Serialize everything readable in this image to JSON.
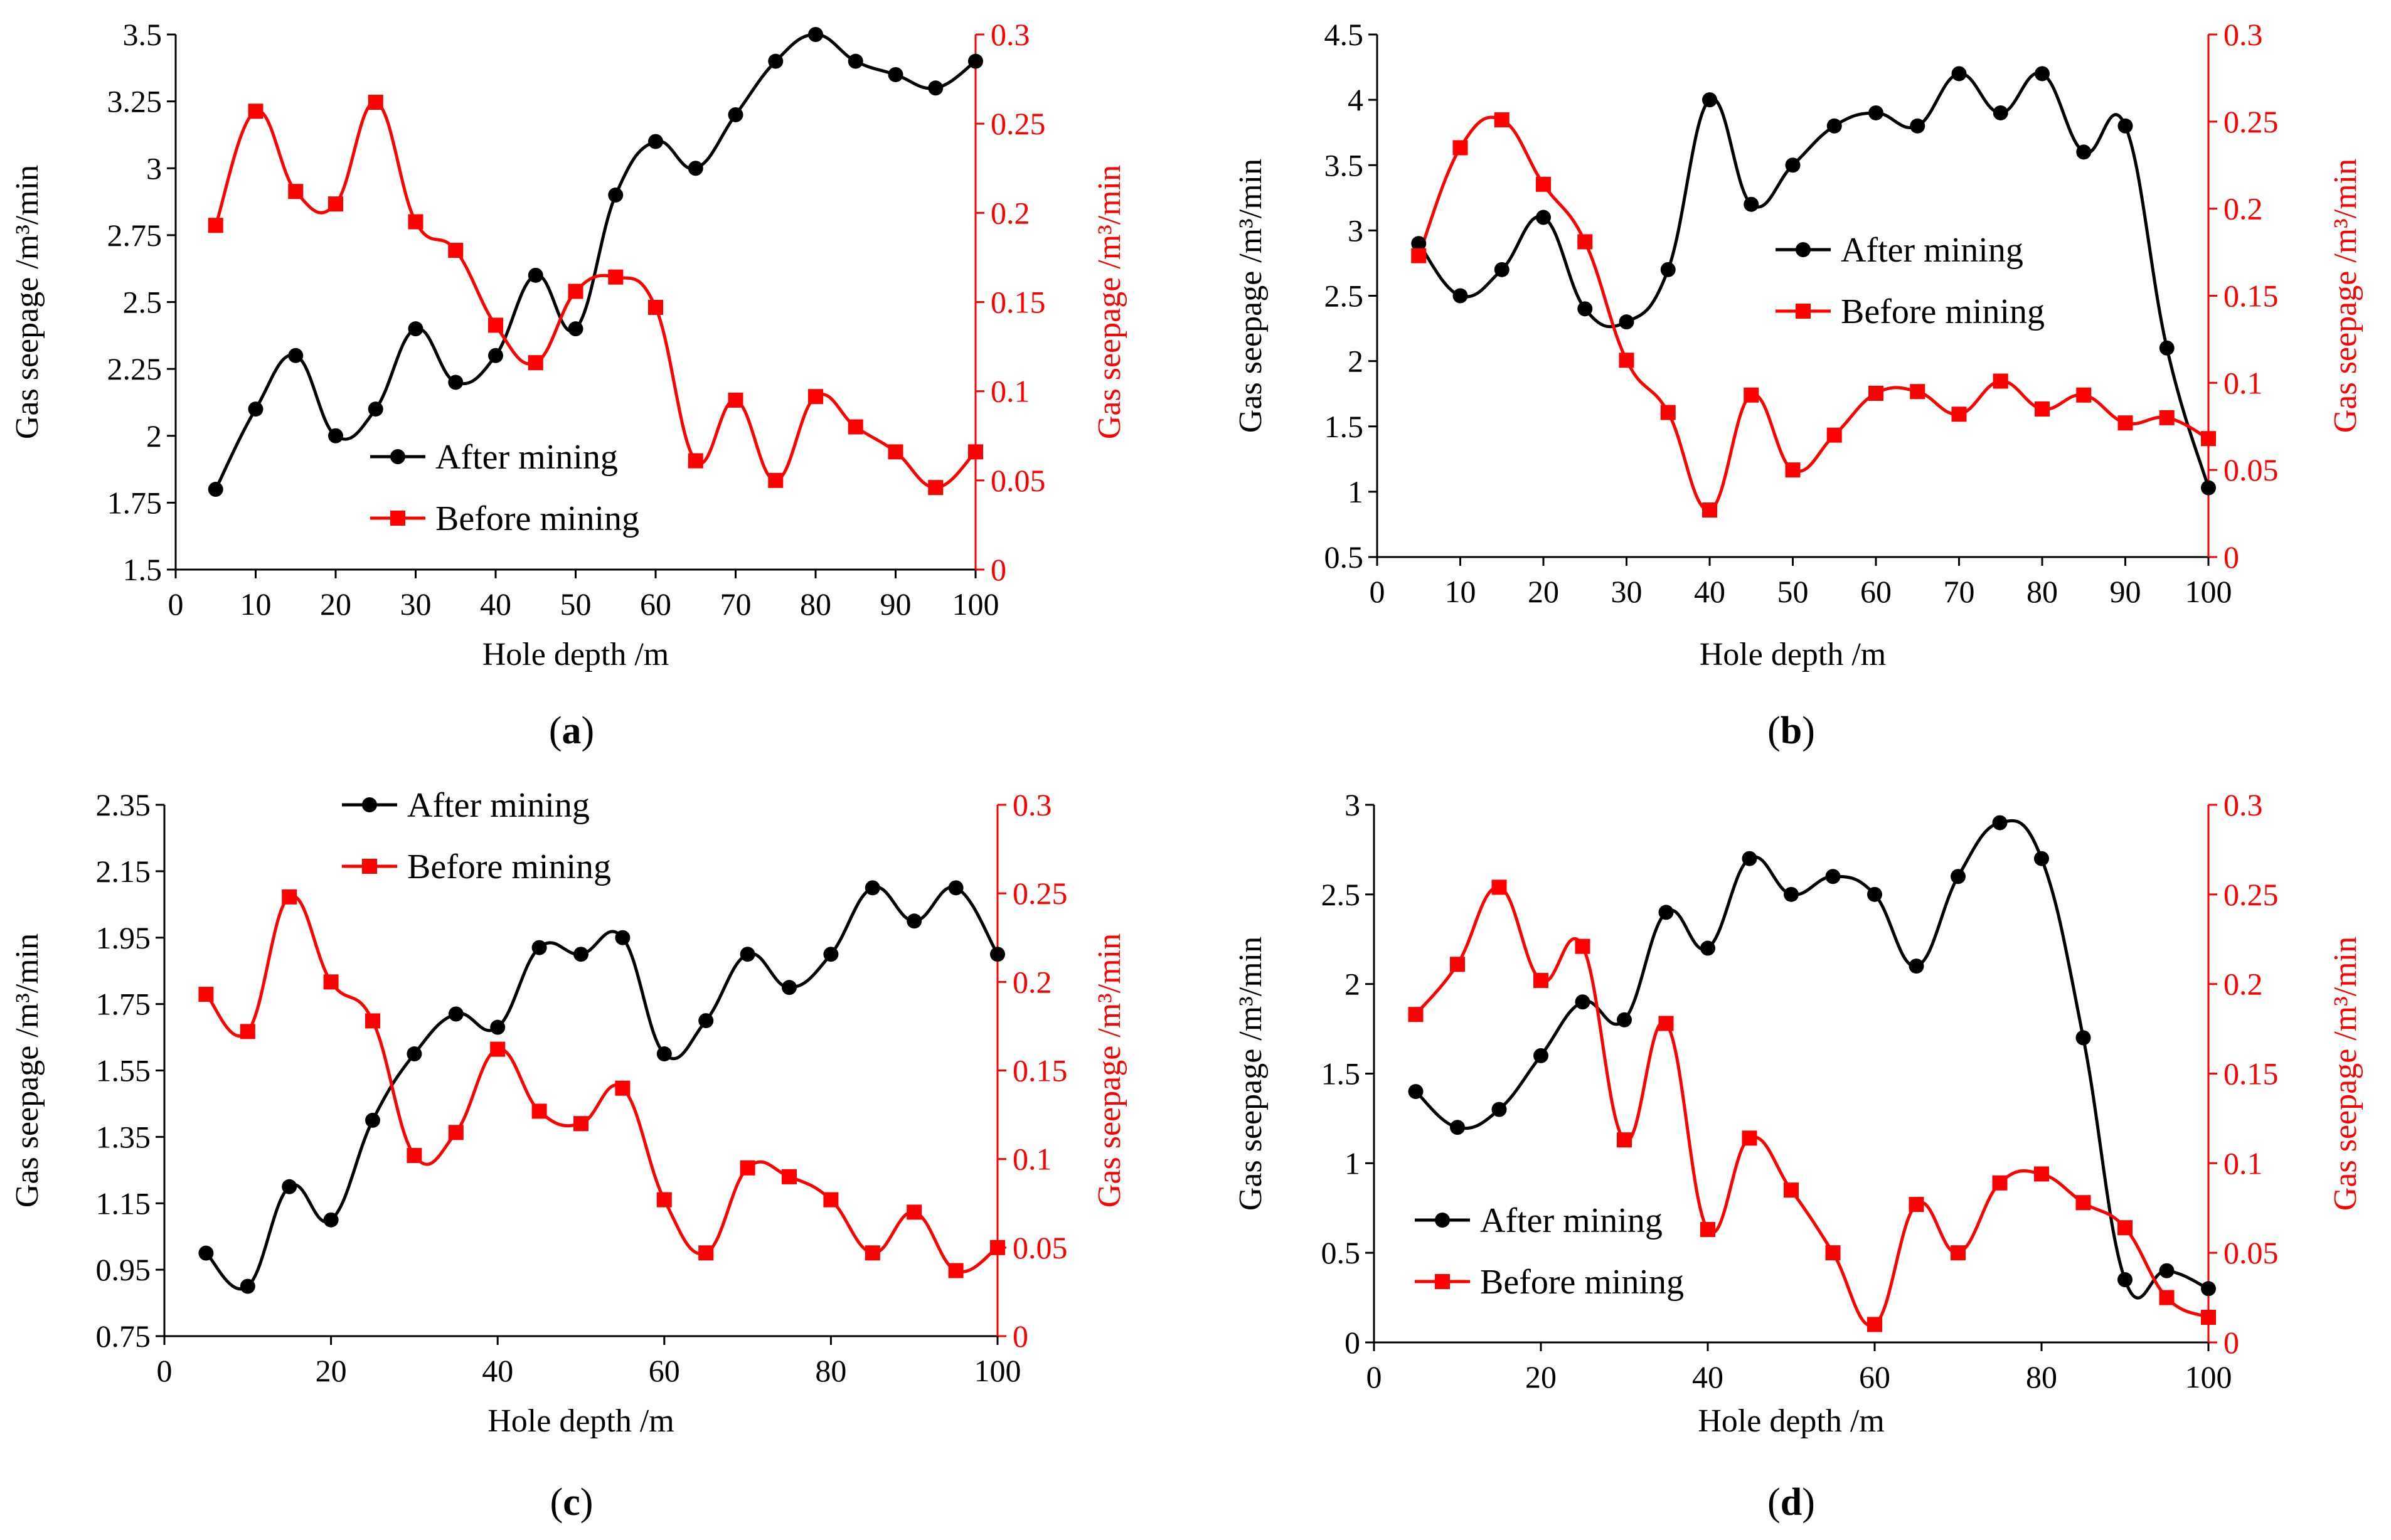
{
  "figure": {
    "colors": {
      "after": "#000000",
      "before": "#ff0000"
    },
    "x_ticks": [
      "0",
      "10",
      "20",
      "30",
      "40",
      "50",
      "60",
      "70",
      "80",
      "90",
      "100"
    ],
    "x_ticks_coarse": [
      "0",
      "20",
      "40",
      "60",
      "80",
      "100"
    ]
  },
  "chart_data": [
    {
      "panel": "a",
      "caption_letter": "a",
      "type": "line",
      "xlabel": "Hole depth /m",
      "ylabel_left": "Gas seepage /m³/min",
      "ylabel_right": "Gas seepage /m³/min",
      "xlim": [
        0,
        100
      ],
      "ylim_left": [
        1.5,
        3.5
      ],
      "left_ticks": [
        "1.5",
        "1.75",
        "2",
        "2.25",
        "2.5",
        "2.75",
        "3",
        "3.25",
        "3.5"
      ],
      "ylim_right": [
        0,
        0.3
      ],
      "right_ticks": [
        "0",
        "0.05",
        "0.1",
        "0.15",
        "0.2",
        "0.25",
        "0.3"
      ],
      "legend_position": "bottom-center",
      "x": [
        5,
        10,
        15,
        20,
        25,
        30,
        35,
        40,
        45,
        50,
        55,
        60,
        65,
        70,
        75,
        80,
        85,
        90,
        95,
        100
      ],
      "series": [
        {
          "name": "After mining",
          "axis": "left",
          "marker": "circle",
          "values": [
            1.8,
            2.1,
            2.3,
            2.0,
            2.1,
            2.4,
            2.2,
            2.3,
            2.6,
            2.4,
            2.9,
            3.1,
            3.0,
            3.2,
            3.4,
            3.5,
            3.4,
            3.35,
            3.3,
            3.4
          ]
        },
        {
          "name": "Before mining",
          "axis": "right",
          "marker": "square",
          "values": [
            0.193,
            0.257,
            0.212,
            0.205,
            0.262,
            0.195,
            0.179,
            0.137,
            0.116,
            0.156,
            0.164,
            0.147,
            0.061,
            0.095,
            0.05,
            0.097,
            0.08,
            0.066,
            0.046,
            0.066
          ]
        }
      ]
    },
    {
      "panel": "b",
      "caption_letter": "b",
      "type": "line",
      "xlabel": "Hole depth /m",
      "ylabel_left": "Gas seepage /m³/min",
      "ylabel_right": "Gas seepage /m³/min",
      "xlim": [
        0,
        100
      ],
      "ylim_left": [
        0.5,
        4.5
      ],
      "left_ticks": [
        "0.5",
        "1",
        "1.5",
        "2",
        "2.5",
        "3",
        "3.5",
        "4",
        "4.5"
      ],
      "ylim_right": [
        0,
        0.3
      ],
      "right_ticks": [
        "0",
        "0.05",
        "0.1",
        "0.15",
        "0.2",
        "0.25",
        "0.3"
      ],
      "legend_position": "center-right",
      "x": [
        5,
        10,
        15,
        20,
        25,
        30,
        35,
        40,
        45,
        50,
        55,
        60,
        65,
        70,
        75,
        80,
        85,
        90,
        95,
        100
      ],
      "series": [
        {
          "name": "After mining",
          "axis": "left",
          "marker": "circle",
          "values": [
            2.9,
            2.5,
            2.7,
            3.1,
            2.4,
            2.3,
            2.7,
            4.0,
            3.2,
            3.5,
            3.8,
            3.9,
            3.8,
            4.2,
            3.9,
            4.2,
            3.6,
            3.8,
            2.1,
            1.03
          ]
        },
        {
          "name": "Before mining",
          "axis": "right",
          "marker": "square",
          "values": [
            0.173,
            0.235,
            0.251,
            0.214,
            0.181,
            0.113,
            0.083,
            0.027,
            0.093,
            0.05,
            0.07,
            0.094,
            0.095,
            0.082,
            0.101,
            0.085,
            0.093,
            0.077,
            0.08,
            0.068
          ]
        }
      ]
    },
    {
      "panel": "c",
      "caption_letter": "c",
      "type": "line",
      "xlabel": "Hole depth /m",
      "ylabel_left": "Gas seepage /m³/min",
      "ylabel_right": "Gas seepage /m³/min",
      "xlim": [
        0,
        100
      ],
      "ylim_left": [
        0.75,
        2.35
      ],
      "left_ticks": [
        "0.75",
        "0.95",
        "1.15",
        "1.35",
        "1.55",
        "1.75",
        "1.95",
        "2.15",
        "2.35"
      ],
      "ylim_right": [
        0,
        0.3
      ],
      "right_ticks": [
        "0",
        "0.05",
        "0.1",
        "0.15",
        "0.2",
        "0.25",
        "0.3"
      ],
      "legend_position": "top-left",
      "x": [
        5,
        10,
        15,
        20,
        25,
        30,
        35,
        40,
        45,
        50,
        55,
        60,
        65,
        70,
        75,
        80,
        85,
        90,
        95,
        100
      ],
      "series": [
        {
          "name": "After mining",
          "axis": "left",
          "marker": "circle",
          "values": [
            1.0,
            0.9,
            1.2,
            1.1,
            1.4,
            1.6,
            1.72,
            1.68,
            1.92,
            1.9,
            1.95,
            1.6,
            1.7,
            1.9,
            1.8,
            1.9,
            2.1,
            2.0,
            2.1,
            1.9
          ]
        },
        {
          "name": "Before mining",
          "axis": "right",
          "marker": "square",
          "values": [
            0.193,
            0.172,
            0.248,
            0.2,
            0.178,
            0.102,
            0.115,
            0.162,
            0.127,
            0.12,
            0.14,
            0.077,
            0.047,
            0.095,
            0.09,
            0.077,
            0.047,
            0.07,
            0.037,
            0.05
          ]
        }
      ]
    },
    {
      "panel": "d",
      "caption_letter": "d",
      "type": "line",
      "xlabel": "Hole depth /m",
      "ylabel_left": "Gas seepage /m³/min",
      "ylabel_right": "Gas seepage /m³/min",
      "xlim": [
        0,
        100
      ],
      "ylim_left": [
        0,
        3
      ],
      "left_ticks": [
        "0",
        "0.5",
        "1",
        "1.5",
        "2",
        "2.5",
        "3"
      ],
      "ylim_right": [
        0,
        0.3
      ],
      "right_ticks": [
        "0",
        "0.05",
        "0.1",
        "0.15",
        "0.2",
        "0.25",
        "0.3"
      ],
      "legend_position": "bottom-left",
      "x": [
        5,
        10,
        15,
        20,
        25,
        30,
        35,
        40,
        45,
        50,
        55,
        60,
        65,
        70,
        75,
        80,
        85,
        90,
        95,
        100
      ],
      "series": [
        {
          "name": "After mining",
          "axis": "left",
          "marker": "circle",
          "values": [
            1.4,
            1.2,
            1.3,
            1.6,
            1.9,
            1.8,
            2.4,
            2.2,
            2.7,
            2.5,
            2.6,
            2.5,
            2.1,
            2.6,
            2.9,
            2.7,
            1.7,
            0.35,
            0.4,
            0.3
          ]
        },
        {
          "name": "Before mining",
          "axis": "right",
          "marker": "square",
          "values": [
            0.183,
            0.211,
            0.254,
            0.202,
            0.221,
            0.113,
            0.178,
            0.063,
            0.114,
            0.085,
            0.05,
            0.01,
            0.077,
            0.05,
            0.089,
            0.094,
            0.078,
            0.064,
            0.025,
            0.014
          ]
        }
      ]
    }
  ]
}
